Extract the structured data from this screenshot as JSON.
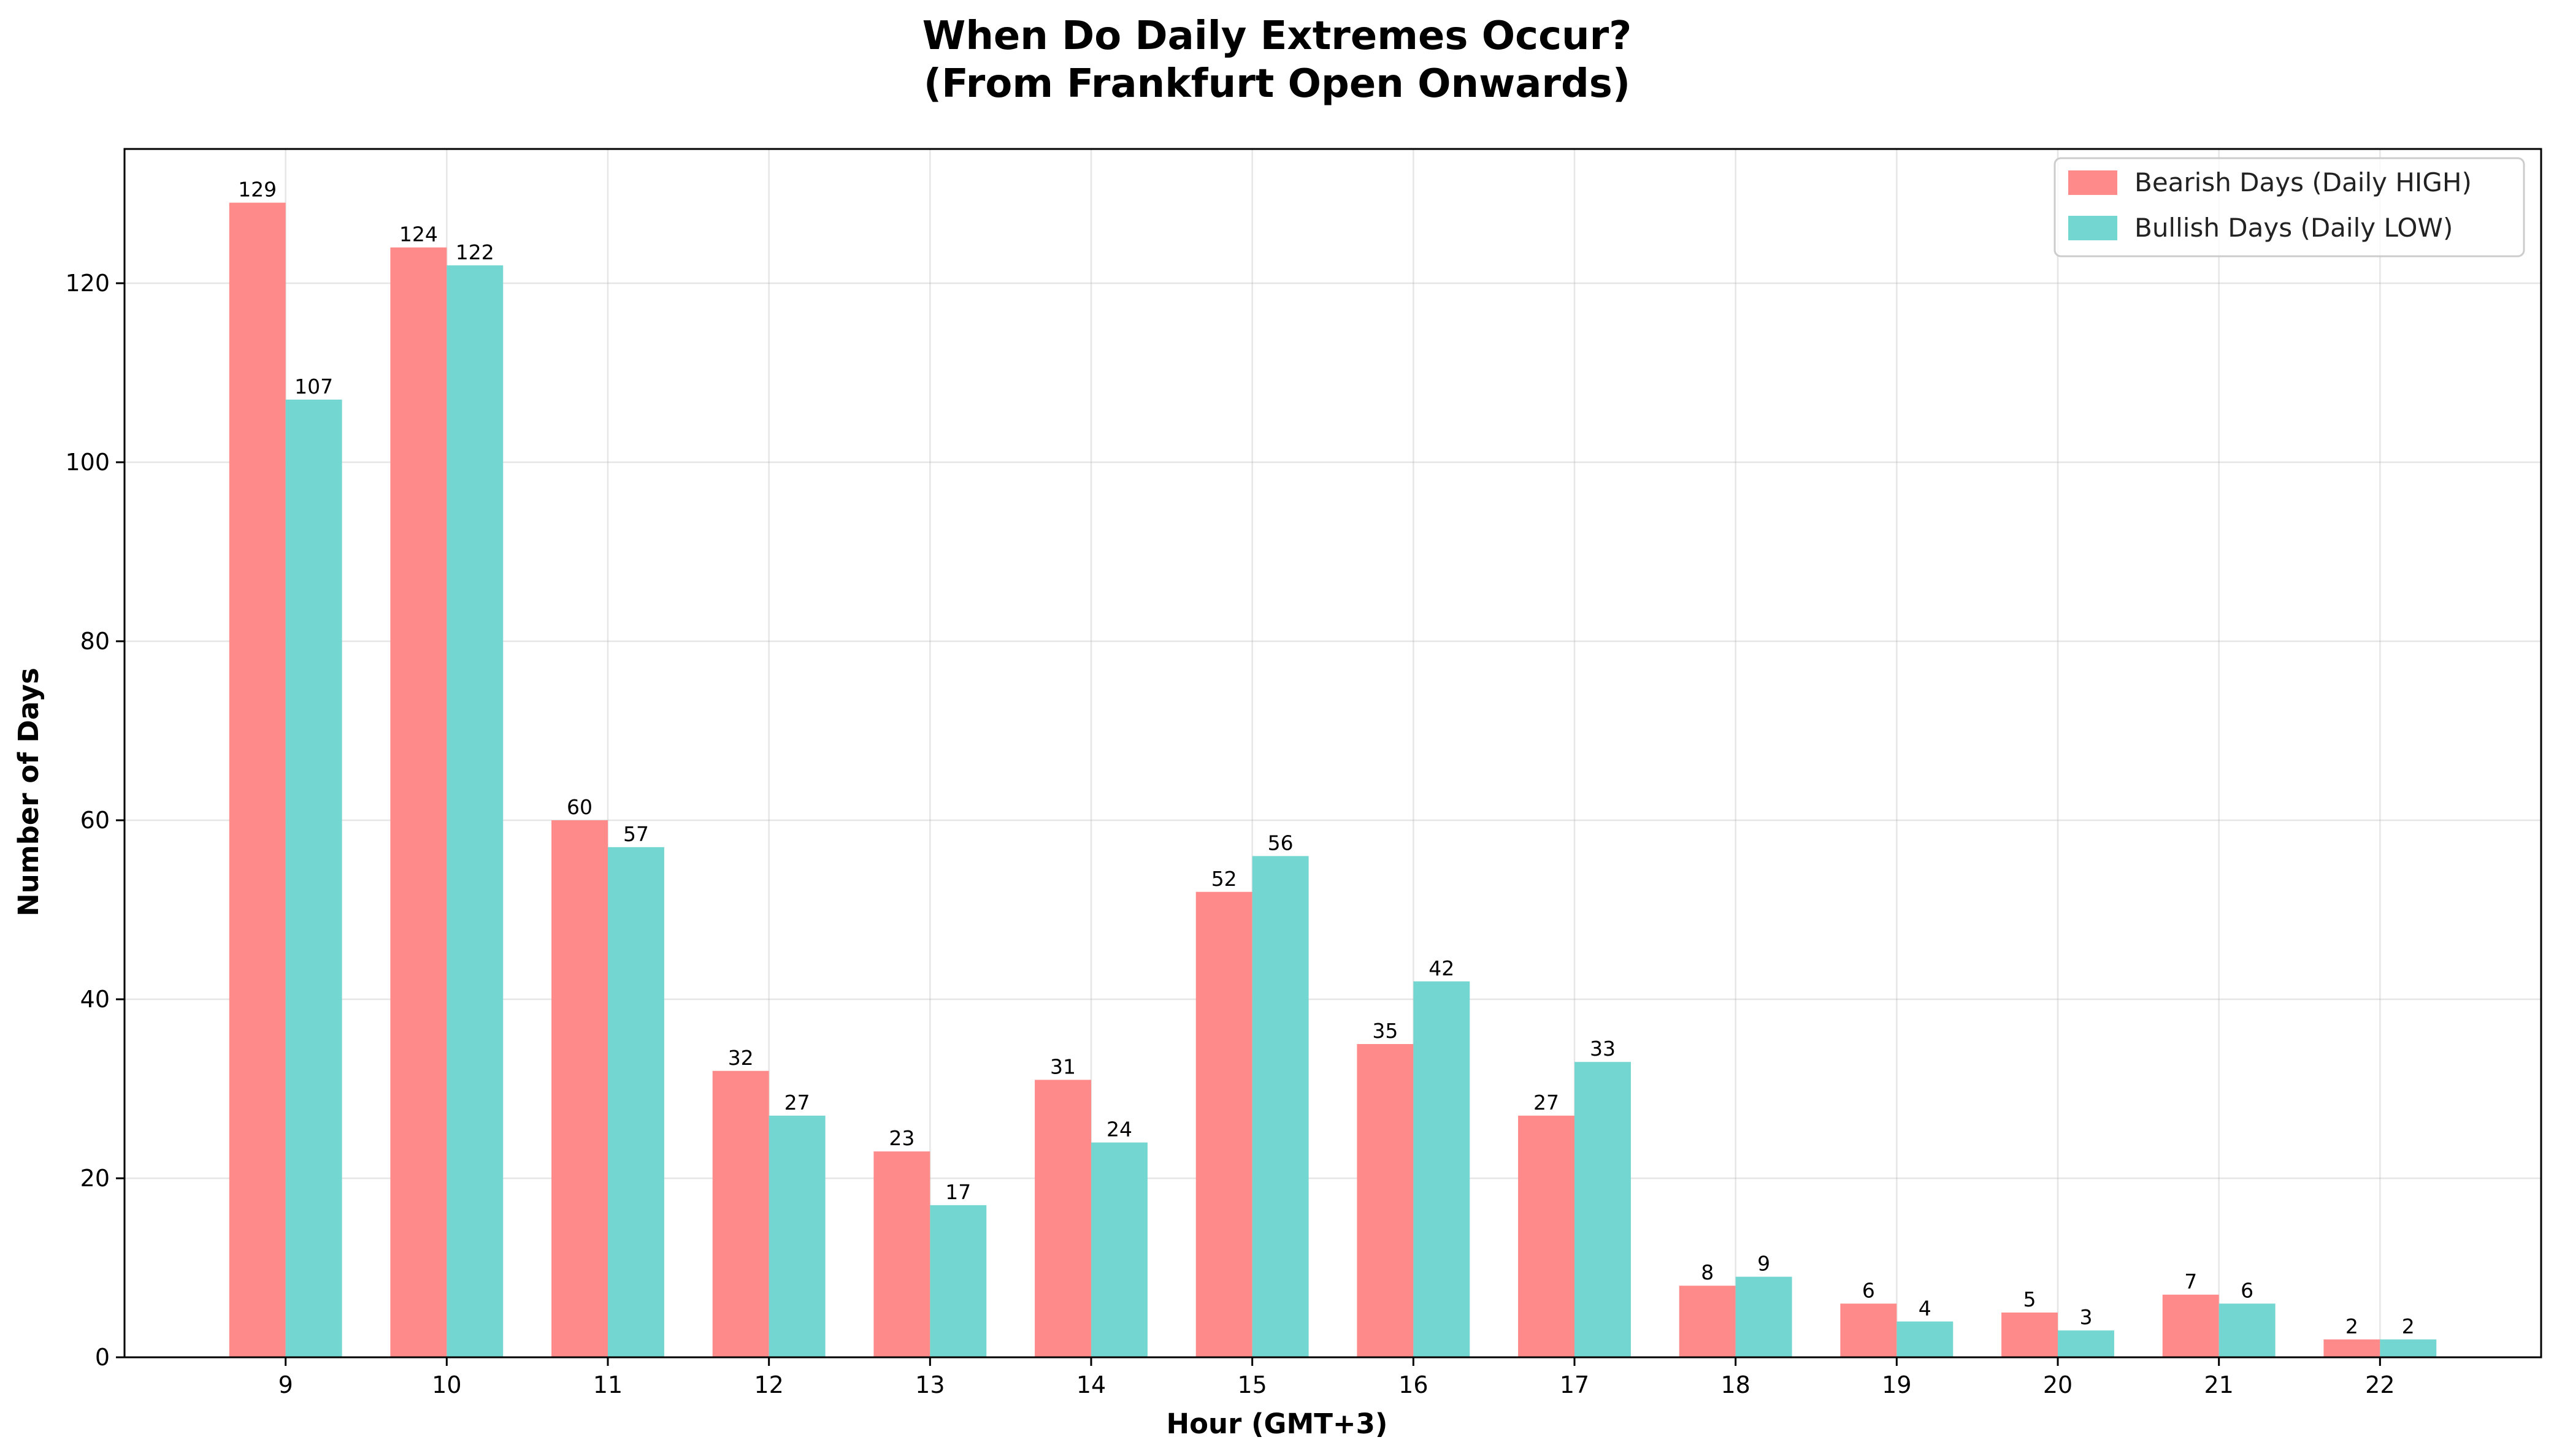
{
  "chart_data": {
    "type": "bar",
    "title_line1": "When Do Daily Extremes Occur?",
    "title_line2": "(From Frankfurt Open Onwards)",
    "xlabel": "Hour (GMT+3)",
    "ylabel": "Number of Days",
    "categories": [
      "9",
      "10",
      "11",
      "12",
      "13",
      "14",
      "15",
      "16",
      "17",
      "18",
      "19",
      "20",
      "21",
      "22"
    ],
    "series": [
      {
        "name": "Bearish Days (Daily HIGH)",
        "color": "#ff8a8a",
        "values": [
          129,
          124,
          60,
          32,
          23,
          31,
          52,
          35,
          27,
          8,
          6,
          5,
          7,
          2
        ]
      },
      {
        "name": "Bullish Days (Daily LOW)",
        "color": "#74d6d0",
        "values": [
          107,
          122,
          57,
          27,
          17,
          24,
          56,
          42,
          33,
          9,
          4,
          3,
          6,
          2
        ]
      }
    ],
    "ylim": [
      0,
      135
    ],
    "yticks": [
      0,
      20,
      40,
      60,
      80,
      100,
      120
    ],
    "grid": true,
    "legend_position": "top-right"
  }
}
